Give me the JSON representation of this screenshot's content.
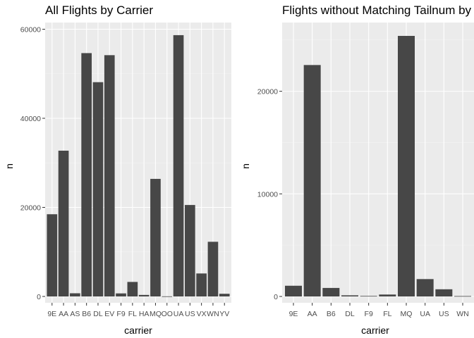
{
  "chart_data": [
    {
      "type": "bar",
      "title": "All Flights by Carrier",
      "xlabel": "carrier",
      "ylabel": "n",
      "ylim": [
        0,
        61500
      ],
      "yticks": [
        0,
        20000,
        40000,
        60000
      ],
      "ytick_labels": [
        "0",
        "20000",
        "40000",
        "60000"
      ],
      "grid": true,
      "categories": [
        "9E",
        "AA",
        "AS",
        "B6",
        "DL",
        "EV",
        "F9",
        "FL",
        "HA",
        "MQ",
        "OO",
        "UA",
        "US",
        "VX",
        "WN",
        "YV"
      ],
      "values": [
        18460,
        32729,
        714,
        54635,
        48110,
        54173,
        685,
        3260,
        342,
        26397,
        32,
        58665,
        20536,
        5162,
        12275,
        601
      ]
    },
    {
      "type": "bar",
      "title": "Flights without Matching Tailnum by Carrier",
      "xlabel": "carrier",
      "ylabel": "n",
      "ylim": [
        0,
        26700
      ],
      "yticks": [
        0,
        10000,
        20000
      ],
      "ytick_labels": [
        "0",
        "10000",
        "20000"
      ],
      "grid": true,
      "categories": [
        "9E",
        "AA",
        "B6",
        "DL",
        "F9",
        "FL",
        "MQ",
        "UA",
        "US",
        "WN"
      ],
      "values": [
        1044,
        22558,
        830,
        110,
        50,
        187,
        25397,
        1693,
        699,
        38
      ]
    }
  ]
}
